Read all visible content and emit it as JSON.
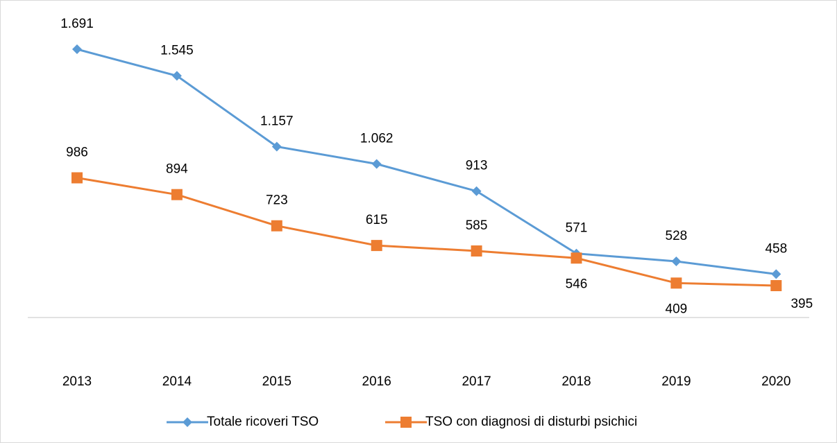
{
  "chart_data": {
    "type": "line",
    "categories": [
      "2013",
      "2014",
      "2015",
      "2016",
      "2017",
      "2018",
      "2019",
      "2020"
    ],
    "series": [
      {
        "name": "Totale ricoveri TSO",
        "color": "#5b9bd5",
        "marker": "diamond",
        "values": [
          1691,
          1545,
          1157,
          1062,
          913,
          571,
          528,
          458
        ],
        "value_labels": [
          "1.691",
          "1.545",
          "1.157",
          "1.062",
          "913",
          "571",
          "528",
          "458"
        ]
      },
      {
        "name": "TSO con diagnosi di disturbi psichici",
        "color": "#ed7d31",
        "marker": "square",
        "values": [
          986,
          894,
          723,
          615,
          585,
          546,
          409,
          395
        ],
        "value_labels": [
          "986",
          "894",
          "723",
          "615",
          "585",
          "546",
          "409",
          "395"
        ]
      }
    ],
    "legend": "bottom"
  }
}
